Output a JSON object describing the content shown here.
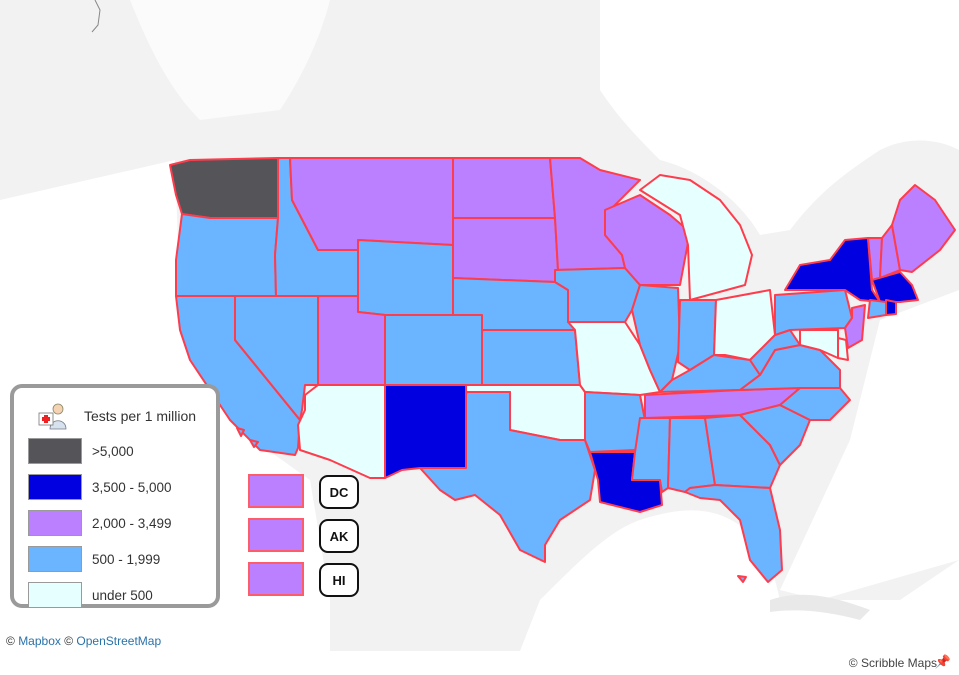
{
  "colors": {
    "over_5000": "#555559",
    "c3500_5000": "#0000e0",
    "c2000_3499": "#bb80ff",
    "c500_1999": "#6bb4ff",
    "under_500": "#e6ffff",
    "border": "#ff3c4c",
    "land": "#f2f2f2",
    "water": "#ffffff"
  },
  "legend": {
    "icon": "medical-icon",
    "title": "Tests per 1 million",
    "items": [
      {
        "label": ">5,000",
        "color": "#555559"
      },
      {
        "label": "3,500 - 5,000",
        "color": "#0000e0"
      },
      {
        "label": "2,000 - 3,499",
        "color": "#bb80ff"
      },
      {
        "label": "500 - 1,999",
        "color": "#6bb4ff"
      },
      {
        "label": "under 500",
        "color": "#e6ffff"
      }
    ]
  },
  "small_states": [
    {
      "code": "DC",
      "color": "#bb80ff"
    },
    {
      "code": "AK",
      "color": "#bb80ff"
    },
    {
      "code": "HI",
      "color": "#bb80ff"
    }
  ],
  "attribution": {
    "copyright": "©",
    "mapbox": "Mapbox",
    "osm": "OpenStreetMap",
    "scribble": "© Scribble Maps",
    "pin_icon": "pushpin-icon"
  }
}
